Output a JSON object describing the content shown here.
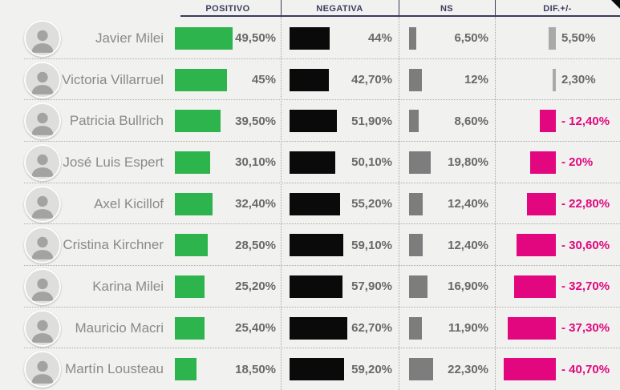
{
  "header": {
    "columns": [
      "POSITIVO",
      "NEGATIVA",
      "NS",
      "DIF.+/-"
    ]
  },
  "colors": {
    "positive_bar": "#2eb44d",
    "negative_bar": "#0a0a0a",
    "ns_bar": "#7d7d7d",
    "dif_positive_bar": "#a9a9a9",
    "dif_negative_bar": "#e2077e",
    "header_text": "#3d3d63",
    "value_text": "#696969"
  },
  "rows": [
    {
      "name": "Javier Milei",
      "pos": 49.5,
      "pos_label": "49,50%",
      "neg": 44,
      "neg_label": "44%",
      "ns": 6.5,
      "ns_label": "6,50%",
      "dif": 5.5,
      "dif_label": "5,50%",
      "dif_color": "#a9a9a9",
      "dif_text_color": "#696969"
    },
    {
      "name": "Victoria Villarruel",
      "pos": 45,
      "pos_label": "45%",
      "neg": 42.7,
      "neg_label": "42,70%",
      "ns": 12,
      "ns_label": "12%",
      "dif": 2.3,
      "dif_label": "2,30%",
      "dif_color": "#a9a9a9",
      "dif_text_color": "#696969"
    },
    {
      "name": "Patricia Bullrich",
      "pos": 39.5,
      "pos_label": "39,50%",
      "neg": 51.9,
      "neg_label": "51,90%",
      "ns": 8.6,
      "ns_label": "8,60%",
      "dif": -12.4,
      "dif_label": "- 12,40%",
      "dif_color": "#e2077e",
      "dif_text_color": "#e2077e"
    },
    {
      "name": "José Luis Espert",
      "pos": 30.1,
      "pos_label": "30,10%",
      "neg": 50.1,
      "neg_label": "50,10%",
      "ns": 19.8,
      "ns_label": "19,80%",
      "dif": -20,
      "dif_label": "- 20%",
      "dif_color": "#e2077e",
      "dif_text_color": "#e2077e"
    },
    {
      "name": "Axel Kicillof",
      "pos": 32.4,
      "pos_label": "32,40%",
      "neg": 55.2,
      "neg_label": "55,20%",
      "ns": 12.4,
      "ns_label": "12,40%",
      "dif": -22.8,
      "dif_label": "- 22,80%",
      "dif_color": "#e2077e",
      "dif_text_color": "#e2077e"
    },
    {
      "name": "Cristina Kirchner",
      "pos": 28.5,
      "pos_label": "28,50%",
      "neg": 59.1,
      "neg_label": "59,10%",
      "ns": 12.4,
      "ns_label": "12,40%",
      "dif": -30.6,
      "dif_label": "- 30,60%",
      "dif_color": "#e2077e",
      "dif_text_color": "#e2077e"
    },
    {
      "name": "Karina Milei",
      "pos": 25.2,
      "pos_label": "25,20%",
      "neg": 57.9,
      "neg_label": "57,90%",
      "ns": 16.9,
      "ns_label": "16,90%",
      "dif": -32.7,
      "dif_label": "- 32,70%",
      "dif_color": "#e2077e",
      "dif_text_color": "#e2077e"
    },
    {
      "name": "Mauricio Macri",
      "pos": 25.4,
      "pos_label": "25,40%",
      "neg": 62.7,
      "neg_label": "62,70%",
      "ns": 11.9,
      "ns_label": "11,90%",
      "dif": -37.3,
      "dif_label": "- 37,30%",
      "dif_color": "#e2077e",
      "dif_text_color": "#e2077e"
    },
    {
      "name": "Martín Lousteau",
      "pos": 18.5,
      "pos_label": "18,50%",
      "neg": 59.2,
      "neg_label": "59,20%",
      "ns": 22.3,
      "ns_label": "22,30%",
      "dif": -40.7,
      "dif_label": "- 40,70%",
      "dif_color": "#e2077e",
      "dif_text_color": "#e2077e"
    }
  ],
  "chart_data": {
    "type": "bar",
    "title": "",
    "orientation": "horizontal",
    "categories": [
      "Javier Milei",
      "Victoria Villarruel",
      "Patricia Bullrich",
      "José Luis Espert",
      "Axel Kicillof",
      "Cristina Kirchner",
      "Karina Milei",
      "Mauricio Macri",
      "Martín Lousteau"
    ],
    "series": [
      {
        "name": "POSITIVO",
        "values": [
          49.5,
          45,
          39.5,
          30.1,
          32.4,
          28.5,
          25.2,
          25.4,
          18.5
        ],
        "color": "#2eb44d"
      },
      {
        "name": "NEGATIVA",
        "values": [
          44,
          42.7,
          51.9,
          50.1,
          55.2,
          59.1,
          57.9,
          62.7,
          59.2
        ],
        "color": "#0a0a0a"
      },
      {
        "name": "NS",
        "values": [
          6.5,
          12,
          8.6,
          19.8,
          12.4,
          12.4,
          16.9,
          11.9,
          22.3
        ],
        "color": "#7d7d7d"
      },
      {
        "name": "DIF.+/-",
        "values": [
          5.5,
          2.3,
          -12.4,
          -20,
          -22.8,
          -30.6,
          -32.7,
          -37.3,
          -40.7
        ],
        "color_positive": "#a9a9a9",
        "color_negative": "#e2077e"
      }
    ],
    "value_suffix": "%",
    "decimal_separator": ",",
    "legend_position": "top",
    "grid": false
  }
}
